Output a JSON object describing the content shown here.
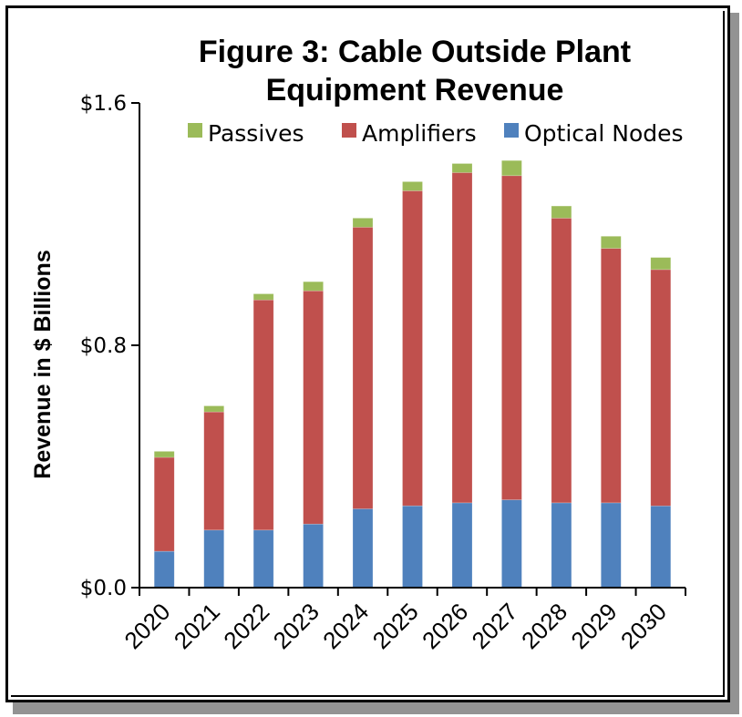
{
  "chart_data": {
    "type": "bar",
    "stacked": true,
    "title": "Figure 3:  Cable Outside Plant Equipment Revenue",
    "title_lines": [
      "Figure 3:  Cable Outside Plant",
      "Equipment Revenue"
    ],
    "xlabel": "",
    "ylabel": "Revenue in $ Billions",
    "ylim": [
      0,
      1.6
    ],
    "yticks": [
      0.0,
      0.8,
      1.6
    ],
    "ytick_labels": [
      "$0.0",
      "$0.8",
      "$1.6"
    ],
    "grid": false,
    "legend_position": "top-right",
    "categories": [
      "2020",
      "2021",
      "2022",
      "2023",
      "2024",
      "2025",
      "2026",
      "2027",
      "2028",
      "2029",
      "2030"
    ],
    "series": [
      {
        "name": "Optical Nodes",
        "color": "#4F81BD",
        "values": [
          0.12,
          0.19,
          0.19,
          0.21,
          0.26,
          0.27,
          0.28,
          0.29,
          0.28,
          0.28,
          0.27
        ]
      },
      {
        "name": "Amplifiers",
        "color": "#C0504D",
        "values": [
          0.31,
          0.39,
          0.76,
          0.77,
          0.93,
          1.04,
          1.09,
          1.07,
          0.94,
          0.84,
          0.78
        ]
      },
      {
        "name": "Passives",
        "color": "#9BBB59",
        "values": [
          0.02,
          0.02,
          0.02,
          0.03,
          0.03,
          0.03,
          0.03,
          0.05,
          0.04,
          0.04,
          0.04
        ]
      }
    ],
    "legend_order": [
      "Passives",
      "Amplifiers",
      "Optical Nodes"
    ]
  }
}
